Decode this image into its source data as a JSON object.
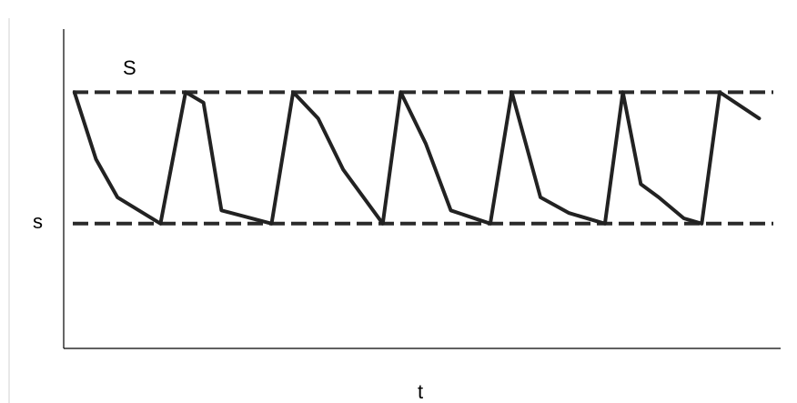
{
  "diagram": {
    "upper_label": "S",
    "lower_label": "s",
    "x_label": "t"
  },
  "chart_data": {
    "type": "line",
    "xlabel": "t",
    "ylabel": "",
    "reference_lines": [
      {
        "label": "S",
        "y": 1,
        "style": "dashed"
      },
      {
        "label": "s",
        "y": 0,
        "style": "dashed"
      }
    ],
    "ylim": [
      -0.95,
      1.48
    ],
    "xlim": [
      0,
      100
    ],
    "series": [
      {
        "values": [
          [
            1.5,
            1.0
          ],
          [
            4.5,
            0.49
          ],
          [
            7.5,
            0.2
          ],
          [
            13.5,
            0.0
          ],
          [
            17.0,
            1.0
          ],
          [
            19.5,
            0.92
          ],
          [
            22.0,
            0.1
          ],
          [
            29.0,
            0.0
          ],
          [
            32.0,
            1.0
          ],
          [
            35.5,
            0.8
          ],
          [
            39.0,
            0.41
          ],
          [
            44.5,
            0.0
          ],
          [
            47.0,
            1.0
          ],
          [
            50.5,
            0.61
          ],
          [
            54.0,
            0.1
          ],
          [
            59.5,
            0.0
          ],
          [
            62.5,
            1.0
          ],
          [
            66.5,
            0.2
          ],
          [
            70.5,
            0.08
          ],
          [
            75.5,
            0.0
          ],
          [
            78.0,
            1.0
          ],
          [
            80.5,
            0.3
          ],
          [
            83.0,
            0.2
          ],
          [
            86.5,
            0.04
          ],
          [
            89.0,
            0.0
          ],
          [
            91.5,
            1.0
          ],
          [
            97.0,
            0.8
          ]
        ]
      }
    ]
  }
}
